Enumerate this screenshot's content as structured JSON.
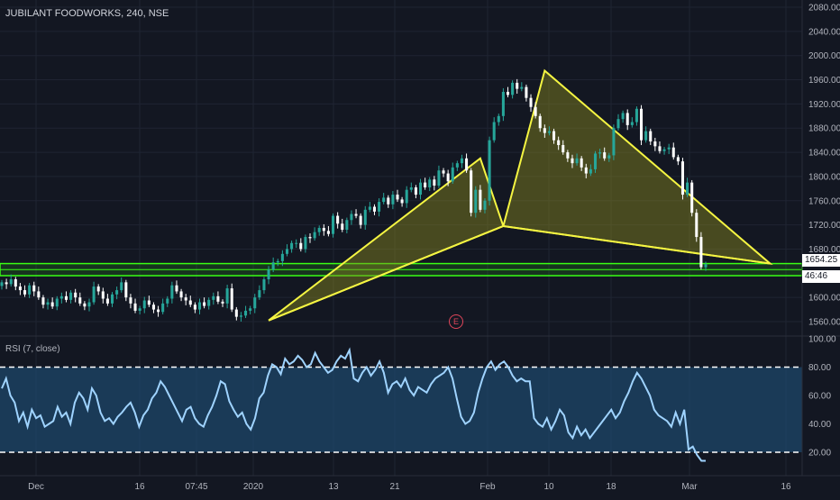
{
  "header": {
    "symbol": "JUBILANT FOODWORKS, 240, NSE",
    "rsi_label": "RSI (7, close)",
    "earnings_marker": "E"
  },
  "colors": {
    "background": "#131722",
    "grid": "#1f2432",
    "up_candle": "#26a69a",
    "down_candle": "#ffffff",
    "pattern": "#f5f542",
    "pattern_fill": "#8a8a1e",
    "support_zone": "#39ff14",
    "rsi_line": "#9fd3ff",
    "rsi_band": "#1e4a6e",
    "earnings": "#e0465a"
  },
  "price_tags": {
    "last_price": "1654.25",
    "countdown": "46:46"
  },
  "chart_data": [
    {
      "type": "candlestick",
      "title": "JUBILANT FOODWORKS, 240, NSE",
      "ylim": [
        1540,
        2090
      ],
      "y_ticks": [
        "2080.00",
        "2040.00",
        "2000.00",
        "1960.00",
        "1920.00",
        "1880.00",
        "1840.00",
        "1800.00",
        "1760.00",
        "1720.00",
        "1680.00",
        "1600.00",
        "1560.00"
      ],
      "x_ticks": [
        "Dec",
        "16",
        "07:45",
        "2020",
        "13",
        "21",
        "Feb",
        "10",
        "18",
        "Mar",
        "16"
      ],
      "close": [
        1625,
        1622,
        1630,
        1618,
        1612,
        1605,
        1620,
        1610,
        1600,
        1588,
        1592,
        1585,
        1598,
        1602,
        1596,
        1608,
        1600,
        1590,
        1585,
        1592,
        1618,
        1610,
        1598,
        1590,
        1605,
        1612,
        1625,
        1600,
        1590,
        1578,
        1582,
        1595,
        1588,
        1580,
        1576,
        1590,
        1598,
        1620,
        1610,
        1600,
        1595,
        1588,
        1580,
        1592,
        1586,
        1596,
        1602,
        1593,
        1590,
        1615,
        1580,
        1568,
        1570,
        1578,
        1582,
        1600,
        1612,
        1630,
        1646,
        1658,
        1660,
        1672,
        1680,
        1690,
        1690,
        1680,
        1700,
        1698,
        1708,
        1715,
        1710,
        1705,
        1735,
        1722,
        1712,
        1728,
        1738,
        1735,
        1720,
        1745,
        1750,
        1742,
        1758,
        1765,
        1754,
        1770,
        1762,
        1756,
        1778,
        1782,
        1770,
        1790,
        1782,
        1795,
        1785,
        1810,
        1805,
        1792,
        1815,
        1822,
        1830,
        1810,
        1740,
        1778,
        1745,
        1760,
        1860,
        1890,
        1900,
        1940,
        1935,
        1955,
        1945,
        1948,
        1930,
        1915,
        1900,
        1880,
        1872,
        1875,
        1860,
        1852,
        1840,
        1830,
        1822,
        1830,
        1815,
        1805,
        1812,
        1838,
        1840,
        1830,
        1835,
        1880,
        1895,
        1905,
        1885,
        1890,
        1912,
        1860,
        1875,
        1858,
        1850,
        1842,
        1845,
        1848,
        1832,
        1825,
        1770,
        1790,
        1740,
        1700,
        1650,
        1655
      ],
      "volume_note": "",
      "support_zone": [
        1636,
        1656
      ],
      "harmonic_pattern": {
        "points": [
          {
            "bar": 58,
            "price": 1562
          },
          {
            "bar": 104,
            "price": 1830
          },
          {
            "bar": 109,
            "price": 1718
          },
          {
            "bar": 118,
            "price": 1975
          },
          {
            "bar": 167,
            "price": 1656
          }
        ]
      }
    },
    {
      "type": "line",
      "title": "RSI (7, close)",
      "ylim": [
        0,
        100
      ],
      "y_ticks": [
        "100.00",
        "80.00",
        "60.00",
        "40.00",
        "20.00"
      ],
      "band": [
        20,
        80
      ],
      "values": [
        65,
        72,
        60,
        55,
        42,
        48,
        38,
        50,
        44,
        46,
        38,
        40,
        42,
        52,
        45,
        48,
        40,
        55,
        62,
        58,
        50,
        65,
        60,
        48,
        42,
        44,
        40,
        45,
        48,
        52,
        55,
        48,
        38,
        46,
        50,
        58,
        62,
        70,
        66,
        60,
        54,
        48,
        42,
        50,
        52,
        44,
        40,
        38,
        46,
        52,
        60,
        70,
        68,
        56,
        50,
        45,
        48,
        40,
        36,
        44,
        58,
        62,
        74,
        82,
        80,
        75,
        86,
        82,
        84,
        88,
        85,
        80,
        82,
        90,
        84,
        80,
        76,
        78,
        84,
        88,
        86,
        92,
        72,
        70,
        76,
        80,
        74,
        78,
        84,
        76,
        62,
        68,
        70,
        66,
        72,
        64,
        60,
        66,
        64,
        62,
        68,
        72,
        74,
        76,
        80,
        72,
        58,
        45,
        40,
        42,
        48,
        62,
        72,
        80,
        84,
        78,
        82,
        84,
        80,
        74,
        70,
        72,
        70,
        70,
        44,
        40,
        38,
        44,
        36,
        42,
        50,
        46,
        34,
        30,
        38,
        32,
        36,
        30,
        34,
        38,
        42,
        46,
        50,
        44,
        48,
        56,
        62,
        70,
        76,
        72,
        66,
        60,
        50,
        46,
        44,
        42,
        38,
        48,
        40,
        50,
        22,
        24,
        18,
        14,
        14
      ]
    }
  ]
}
